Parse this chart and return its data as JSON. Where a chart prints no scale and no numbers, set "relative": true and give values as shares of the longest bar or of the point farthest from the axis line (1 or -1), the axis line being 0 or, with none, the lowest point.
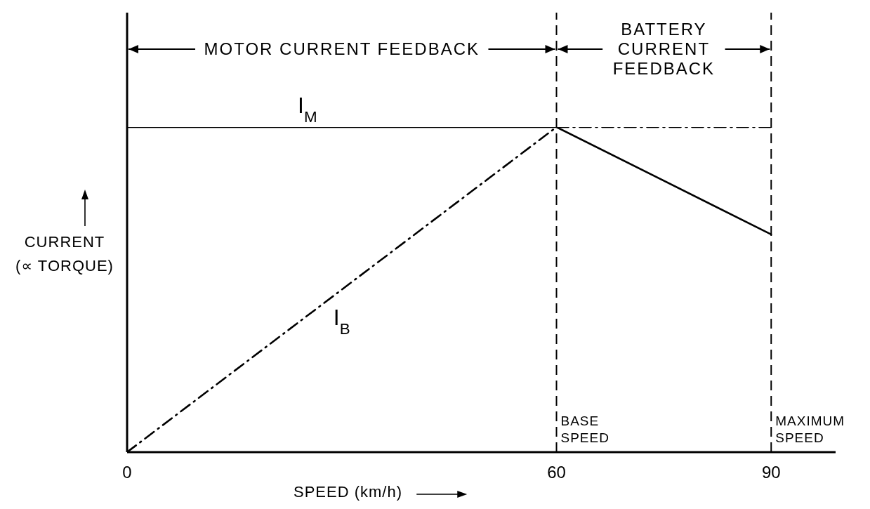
{
  "chart_data": {
    "type": "line",
    "relative": true,
    "xlabel": "SPEED (km/h)",
    "ylabel": "CURRENT (∝ TORQUE)",
    "xlim": [
      0,
      99
    ],
    "xticks": [
      0,
      60,
      90
    ],
    "series": [
      {
        "name": "I$_{M}$",
        "color": "#000000",
        "line_style": "solid",
        "x": [
          0,
          60,
          90
        ],
        "values": [
          1,
          1,
          0.67
        ]
      },
      {
        "name": "I$_{B}$",
        "color": "#000000",
        "line_style": "dashed",
        "x": [
          0,
          60,
          90
        ],
        "values": [
          0,
          1,
          1
        ]
      }
    ],
    "ref_lines": [
      {
        "axis": "x",
        "value": 60,
        "label": "BASE SPEED",
        "color": "#000000",
        "line_style": "dashed"
      },
      {
        "axis": "x",
        "value": 90,
        "label": "MAXIMUM SPEED",
        "color": "#000000",
        "line_style": "dashed"
      }
    ],
    "annotations": [
      "MOTOR CURRENT FEEDBACK",
      "BATTERY CURRENT FEEDBACK"
    ]
  }
}
